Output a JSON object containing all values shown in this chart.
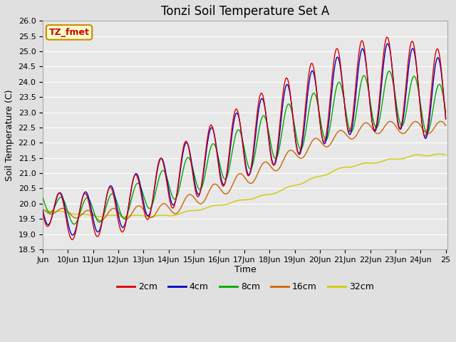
{
  "title": "Tonzi Soil Temperature Set A",
  "xlabel": "Time",
  "ylabel": "Soil Temperature (C)",
  "ylim": [
    18.5,
    26.0
  ],
  "yticks": [
    18.5,
    19.0,
    19.5,
    20.0,
    20.5,
    21.0,
    21.5,
    22.0,
    22.5,
    23.0,
    23.5,
    24.0,
    24.5,
    25.0,
    25.5,
    26.0
  ],
  "legend_labels": [
    "2cm",
    "4cm",
    "8cm",
    "16cm",
    "32cm"
  ],
  "legend_colors": [
    "#dd0000",
    "#0000cc",
    "#00aa00",
    "#cc6600",
    "#cccc00"
  ],
  "annotation_text": "TZ_fmet",
  "annotation_bg": "#ffffcc",
  "annotation_fg": "#cc0000",
  "annotation_edge": "#cc8800",
  "background_color": "#e0e0e0",
  "plot_bg": "#e8e8e8",
  "grid_color": "#ffffff",
  "title_fontsize": 12,
  "axis_fontsize": 8,
  "x_start_day": 9,
  "x_end_day": 25,
  "x_tick_days": [
    9,
    10,
    11,
    12,
    13,
    14,
    15,
    16,
    17,
    18,
    19,
    20,
    21,
    22,
    23,
    24,
    25
  ],
  "x_tick_labels": [
    "Jun",
    "10Jun",
    "11Jun",
    "12Jun",
    "13Jun",
    "14Jun",
    "15Jun",
    "16Jun",
    "17Jun",
    "18Jun",
    "19Jun",
    "20Jun",
    "21Jun",
    "22Jun",
    "23Jun",
    "24Jun",
    "25"
  ]
}
